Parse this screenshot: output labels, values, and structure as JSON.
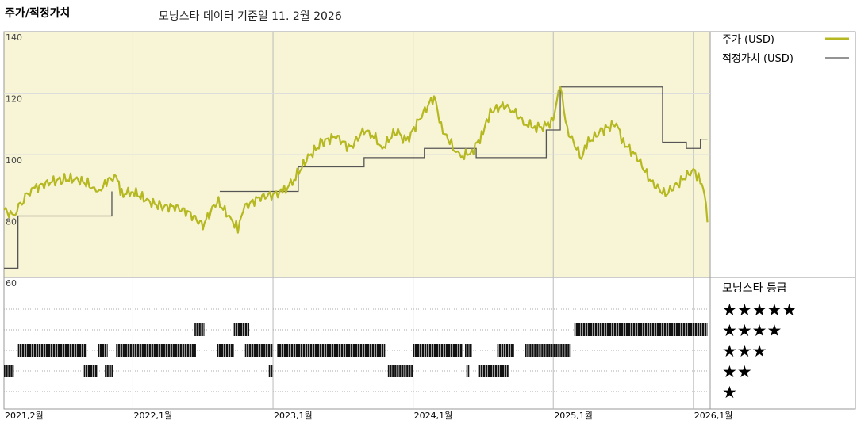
{
  "header": {
    "title": "주가/적정가치",
    "subtitle": "모닝스타 데이터 기준일 11. 2월 2026"
  },
  "colors": {
    "price": "#b5b820",
    "fair_value": "#555555",
    "plot_bg": "#f8f5d6",
    "rating_bar": "#111111"
  },
  "chart_data": {
    "type": "line",
    "title": "주가/적정가치",
    "ylim": [
      60,
      140
    ],
    "yticks": [
      {
        "v": 60,
        "label": "60"
      },
      {
        "v": 80,
        "label": "80"
      },
      {
        "v": 100,
        "label": "100"
      },
      {
        "v": 120,
        "label": "120"
      },
      {
        "v": 140,
        "label": "140"
      }
    ],
    "x_range": [
      2021.08,
      2026.12
    ],
    "xticks": [
      {
        "x": 2021.08,
        "label": "2021,2월"
      },
      {
        "x": 2022.0,
        "label": "2022,1월"
      },
      {
        "x": 2023.0,
        "label": "2023,1월"
      },
      {
        "x": 2024.0,
        "label": "2024,1월"
      },
      {
        "x": 2025.0,
        "label": "2025,1월"
      },
      {
        "x": 2026.0,
        "label": "2026,1월"
      }
    ],
    "legend": [
      "주가 (USD)",
      "적정가치 (USD)"
    ],
    "legend_position": "right",
    "series": [
      {
        "name": "주가 (USD)",
        "x": [
          2021.08,
          2021.15,
          2021.22,
          2021.3,
          2021.4,
          2021.5,
          2021.6,
          2021.7,
          2021.75,
          2021.8,
          2021.88,
          2021.92,
          2022.0,
          2022.1,
          2022.2,
          2022.3,
          2022.4,
          2022.5,
          2022.6,
          2022.7,
          2022.75,
          2022.8,
          2022.9,
          2023.0,
          2023.08,
          2023.15,
          2023.25,
          2023.35,
          2023.45,
          2023.55,
          2023.65,
          2023.72,
          2023.78,
          2023.88,
          2023.95,
          2024.05,
          2024.15,
          2024.2,
          2024.25,
          2024.33,
          2024.42,
          2024.5,
          2024.55,
          2024.65,
          2024.72,
          2024.8,
          2024.88,
          2024.95,
          2025.0,
          2025.05,
          2025.1,
          2025.2,
          2025.25,
          2025.35,
          2025.45,
          2025.5,
          2025.6,
          2025.7,
          2025.8,
          2025.9,
          2026.0,
          2026.05,
          2026.08,
          2026.1
        ],
        "values": [
          82,
          80,
          86,
          89,
          91,
          92,
          92,
          90,
          87,
          91,
          93,
          87,
          88,
          85,
          83,
          83,
          81,
          77,
          85,
          79,
          76,
          83,
          86,
          87,
          88,
          92,
          99,
          104,
          106,
          102,
          108,
          106,
          102,
          108,
          104,
          112,
          119,
          109,
          105,
          99,
          101,
          107,
          114,
          116,
          114,
          110,
          109,
          109,
          112,
          122,
          108,
          99,
          104,
          108,
          110,
          104,
          99,
          91,
          87,
          91,
          95,
          92,
          87,
          78
        ]
      },
      {
        "name": "적정가치 (USD)",
        "step": true,
        "x": [
          2021.08,
          2021.18,
          2021.85,
          2022.55,
          2022.62,
          2023.0,
          2023.18,
          2023.65,
          2024.08,
          2024.45,
          2024.95,
          2025.05,
          2025.3,
          2025.78,
          2025.95,
          2026.05,
          2026.1
        ],
        "values": [
          63,
          80,
          88,
          null,
          88,
          88,
          96,
          99,
          102,
          99,
          108,
          122,
          122,
          104,
          102,
          105,
          105
        ]
      }
    ],
    "reference_line": 80,
    "rating": {
      "title": "모닝스타 등급",
      "levels": [
        "★★★★★",
        "★★★★",
        "★★★",
        "★★",
        "★"
      ],
      "segments": [
        {
          "stars": 4,
          "from": 2022.44,
          "to": 2022.51
        },
        {
          "stars": 4,
          "from": 2022.72,
          "to": 2022.83
        },
        {
          "stars": 4,
          "from": 2025.15,
          "to": 2026.1
        },
        {
          "stars": 3,
          "from": 2021.18,
          "to": 2021.67
        },
        {
          "stars": 3,
          "from": 2021.75,
          "to": 2021.82
        },
        {
          "stars": 3,
          "from": 2021.88,
          "to": 2022.45
        },
        {
          "stars": 3,
          "from": 2022.6,
          "to": 2022.72
        },
        {
          "stars": 3,
          "from": 2022.8,
          "to": 2023.0
        },
        {
          "stars": 3,
          "from": 2023.03,
          "to": 2023.8
        },
        {
          "stars": 3,
          "from": 2024.0,
          "to": 2024.35
        },
        {
          "stars": 3,
          "from": 2024.37,
          "to": 2024.42
        },
        {
          "stars": 3,
          "from": 2024.6,
          "to": 2024.72
        },
        {
          "stars": 3,
          "from": 2024.8,
          "to": 2025.12
        },
        {
          "stars": 2,
          "from": 2021.08,
          "to": 2021.15
        },
        {
          "stars": 2,
          "from": 2021.65,
          "to": 2021.75
        },
        {
          "stars": 2,
          "from": 2021.8,
          "to": 2021.86
        },
        {
          "stars": 2,
          "from": 2022.97,
          "to": 2023.0
        },
        {
          "stars": 2,
          "from": 2023.82,
          "to": 2024.0
        },
        {
          "stars": 2,
          "from": 2024.38,
          "to": 2024.4
        },
        {
          "stars": 2,
          "from": 2024.47,
          "to": 2024.68
        }
      ]
    }
  }
}
